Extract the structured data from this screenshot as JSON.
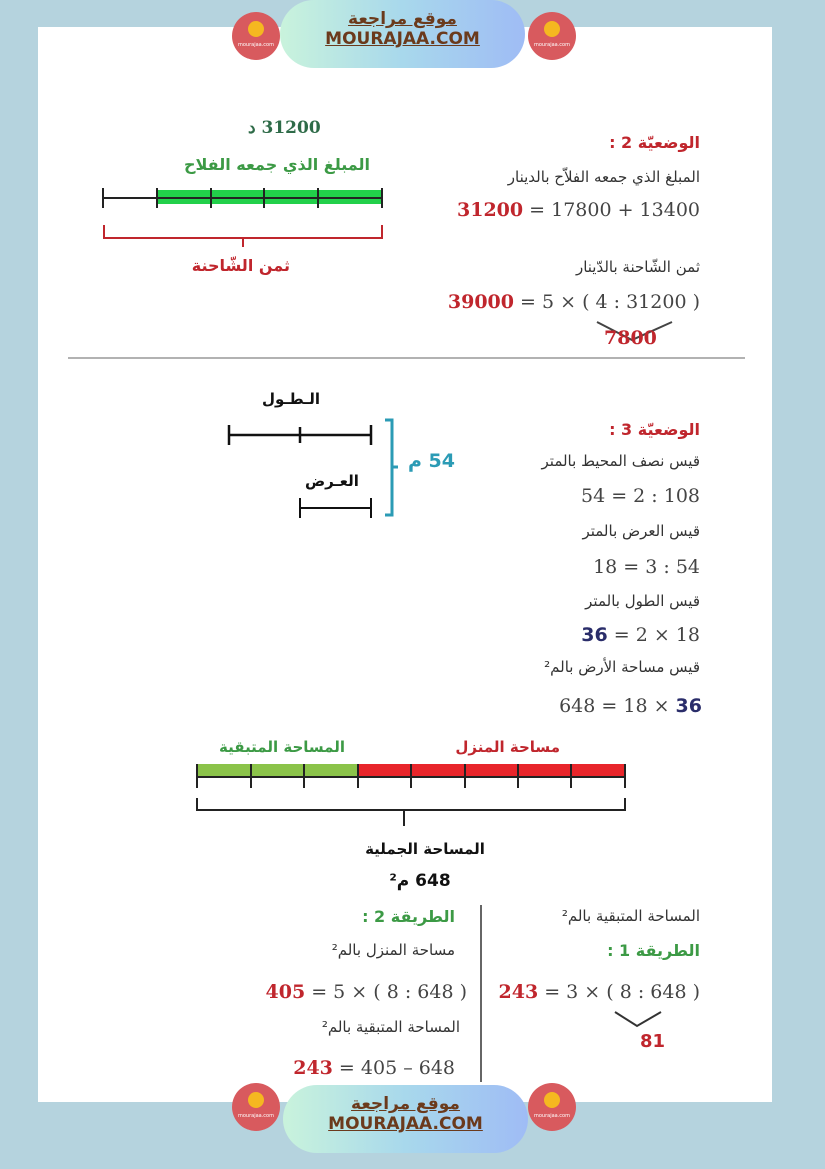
{
  "site": {
    "name_ar": "موقع مراجعة",
    "name_en": "MOURAJAA.COM",
    "logo_text": "mourajaa.com"
  },
  "s2": {
    "title": "الوضعيّة 2 :",
    "line1": "المبلغ الذي جمعه الفلاّح بالدينار",
    "eq1": {
      "result": "31200",
      "rest": " = 17800 + 13400"
    },
    "line2": "ثمن الشّاحنة بالدّينار",
    "eq2": {
      "result": "39000",
      "rest": " = 5 × ( 4 : 31200 )"
    },
    "sub": "7800",
    "diagram": {
      "top_value": "31200 د",
      "green_label": "المبلغ الذي جمعه الفلاح",
      "brace_label": "ثمن الشّاحنة",
      "parts_total": 5,
      "parts_green": 4
    }
  },
  "s3": {
    "title": "الوضعيّة 3 :",
    "lines": [
      {
        "text": "قيس نصف المحيط بالمتر",
        "eq": "54 = 2 : 108"
      },
      {
        "text": "قيس العرض بالمتر",
        "eq": "18 = 3 : 54"
      },
      {
        "text": "قيس الطول بالمتر",
        "eq_bold": "36",
        "eq": " = 2 × 18"
      },
      {
        "text": "قيس مساحة الأرض بالم²",
        "eq": "648 = 18 × ",
        "eq_bold_end": "36"
      }
    ],
    "diagram": {
      "length_label": "الـطـول",
      "width_label": "العـرض",
      "total": "54 م"
    }
  },
  "s4": {
    "diagram": {
      "green_label": "المساحة المتبقية",
      "red_label": "مساحة المنزل",
      "total_label": "المساحة الجملية",
      "total_value": "648 م²",
      "parts_total": 8,
      "parts_green": 3
    },
    "m1": {
      "heading": "المساحة المتبقية بالم²",
      "title": "الطريقة 1 :",
      "eq": {
        "result": "243",
        "rest": " = 3 × ( 8 : 648 )"
      },
      "sub": "81"
    },
    "m2": {
      "title": "الطريقة 2 :",
      "line1": "مساحة المنزل بالم²",
      "eq1": {
        "result": "405",
        "rest": " = 5 × ( 8 : 648 )"
      },
      "line2": "المساحة المتبقية بالم²",
      "eq2": {
        "result": "243",
        "rest": " = 405 – 648"
      }
    }
  },
  "colors": {
    "red": "#c0262d",
    "green": "#3c9a45",
    "bar_green": "#22d04a",
    "bar_lime": "#8bc34a",
    "bar_red": "#e8262b",
    "teal": "#2b9bb5"
  }
}
